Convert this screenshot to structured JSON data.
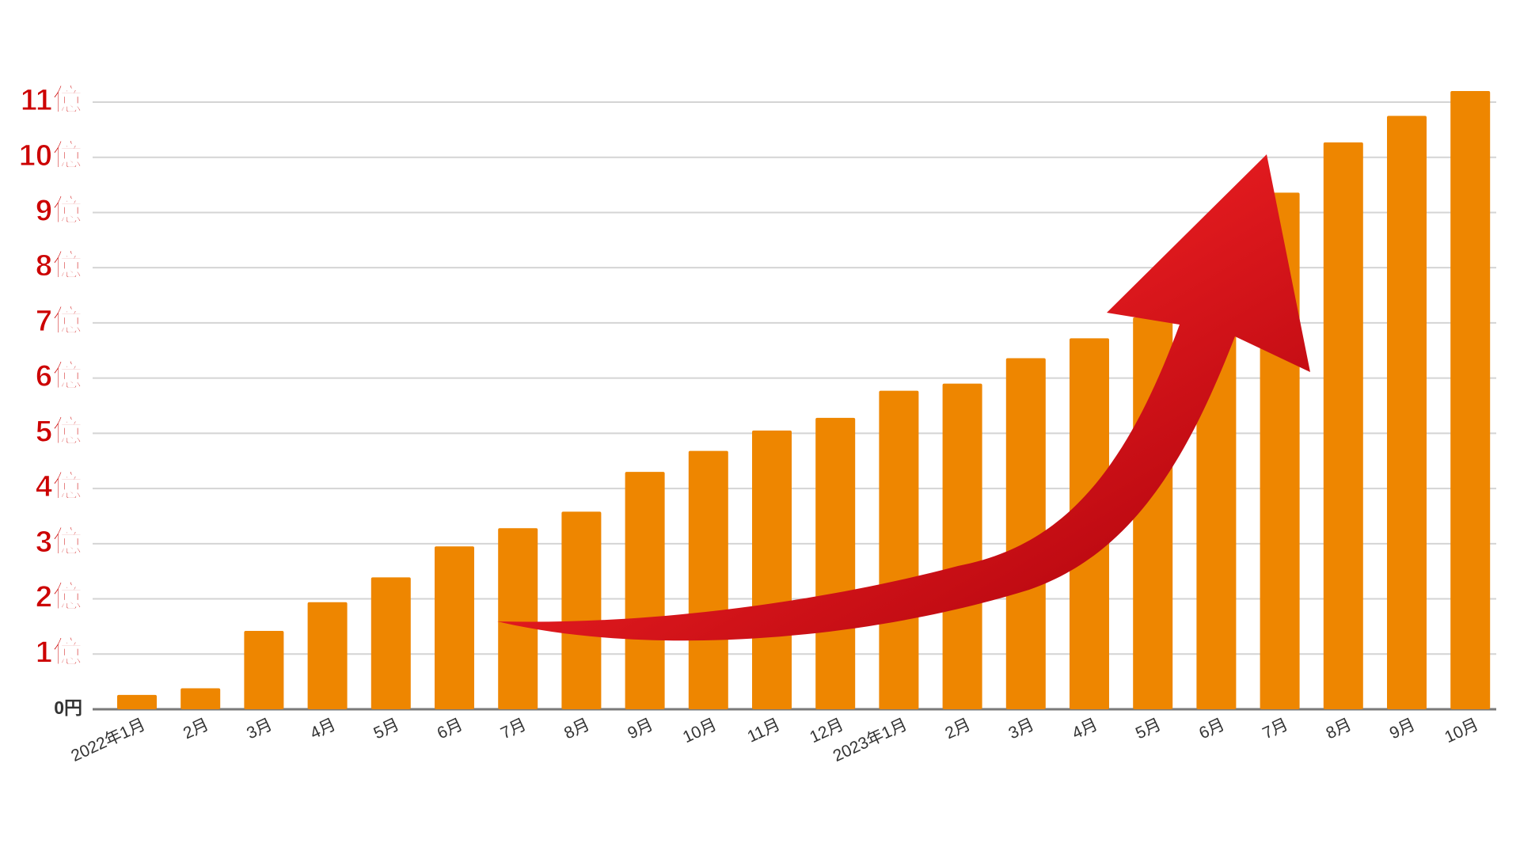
{
  "chart_data": {
    "type": "bar",
    "title": "",
    "xlabel": "",
    "ylabel": "",
    "ylim": [
      0,
      11
    ],
    "grid": true,
    "legend": "none",
    "y_ticks": [
      {
        "value": 0,
        "label": "0円"
      },
      {
        "value": 1,
        "label": "1億"
      },
      {
        "value": 2,
        "label": "2億"
      },
      {
        "value": 3,
        "label": "3億"
      },
      {
        "value": 4,
        "label": "4億"
      },
      {
        "value": 5,
        "label": "5億"
      },
      {
        "value": 6,
        "label": "6億"
      },
      {
        "value": 7,
        "label": "7億"
      },
      {
        "value": 8,
        "label": "8億"
      },
      {
        "value": 9,
        "label": "9億"
      },
      {
        "value": 10,
        "label": "10億"
      },
      {
        "value": 11,
        "label": "11億"
      }
    ],
    "categories": [
      "2022年1月",
      "2月",
      "3月",
      "4月",
      "5月",
      "6月",
      "7月",
      "8月",
      "9月",
      "10月",
      "11月",
      "12月",
      "2023年1月",
      "2月",
      "3月",
      "4月",
      "5月",
      "6月",
      "7月",
      "8月",
      "9月",
      "10月"
    ],
    "values": [
      0.26,
      0.38,
      1.42,
      1.94,
      2.39,
      2.95,
      3.28,
      3.58,
      4.3,
      4.68,
      5.05,
      5.28,
      5.77,
      5.9,
      6.36,
      6.72,
      7.1,
      7.9,
      9.36,
      10.27,
      10.75,
      11.2
    ],
    "annotations": [
      {
        "type": "arrow",
        "description": "upward-trend-arrow"
      }
    ]
  },
  "colors": {
    "bar": "#ee8600",
    "y_tick_highlight": "#cc0000",
    "y_tick_zero": "#333333",
    "x_tick": "#333333",
    "grid": "#d4d4d4",
    "arrow_light": "#ee2a24",
    "arrow_dark": "#b0000c"
  }
}
